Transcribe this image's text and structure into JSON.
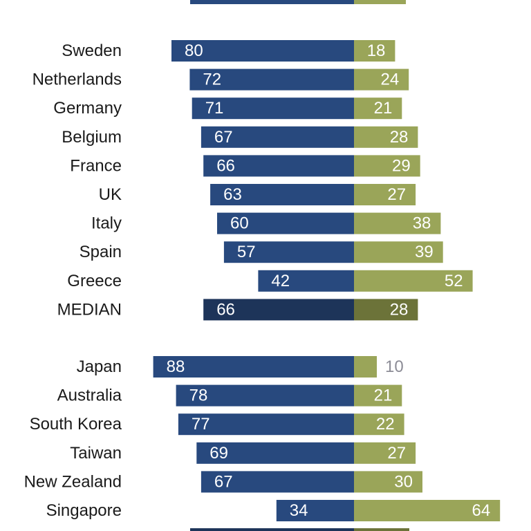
{
  "chart_data": {
    "type": "bar",
    "orientation": "diverging-horizontal",
    "colors": {
      "left": "#28497e",
      "right": "#9aa559",
      "left_median": "#1d3459",
      "right_median": "#6c7339",
      "left_text": "#ffffff",
      "right_text": "#ffffff",
      "right_text_outside": "#8c8c96"
    },
    "groups": [
      {
        "name": "europe",
        "rows": [
          {
            "label": "Sweden",
            "left": 80,
            "right": 18
          },
          {
            "label": "Netherlands",
            "left": 72,
            "right": 24
          },
          {
            "label": "Germany",
            "left": 71,
            "right": 21
          },
          {
            "label": "Belgium",
            "left": 67,
            "right": 28
          },
          {
            "label": "France",
            "left": 66,
            "right": 29
          },
          {
            "label": "UK",
            "left": 63,
            "right": 27
          },
          {
            "label": "Italy",
            "left": 60,
            "right": 38
          },
          {
            "label": "Spain",
            "left": 57,
            "right": 39
          },
          {
            "label": "Greece",
            "left": 42,
            "right": 52
          },
          {
            "label": "MEDIAN",
            "left": 66,
            "right": 28,
            "median": true
          }
        ]
      },
      {
        "name": "asia-pacific",
        "rows": [
          {
            "label": "Japan",
            "left": 88,
            "right": 10
          },
          {
            "label": "Australia",
            "left": 78,
            "right": 21
          },
          {
            "label": "South Korea",
            "left": 77,
            "right": 22
          },
          {
            "label": "Taiwan",
            "left": 69,
            "right": 27
          },
          {
            "label": "New Zealand",
            "left": 67,
            "right": 30
          },
          {
            "label": "Singapore",
            "left": 34,
            "right": 64
          }
        ]
      }
    ]
  }
}
